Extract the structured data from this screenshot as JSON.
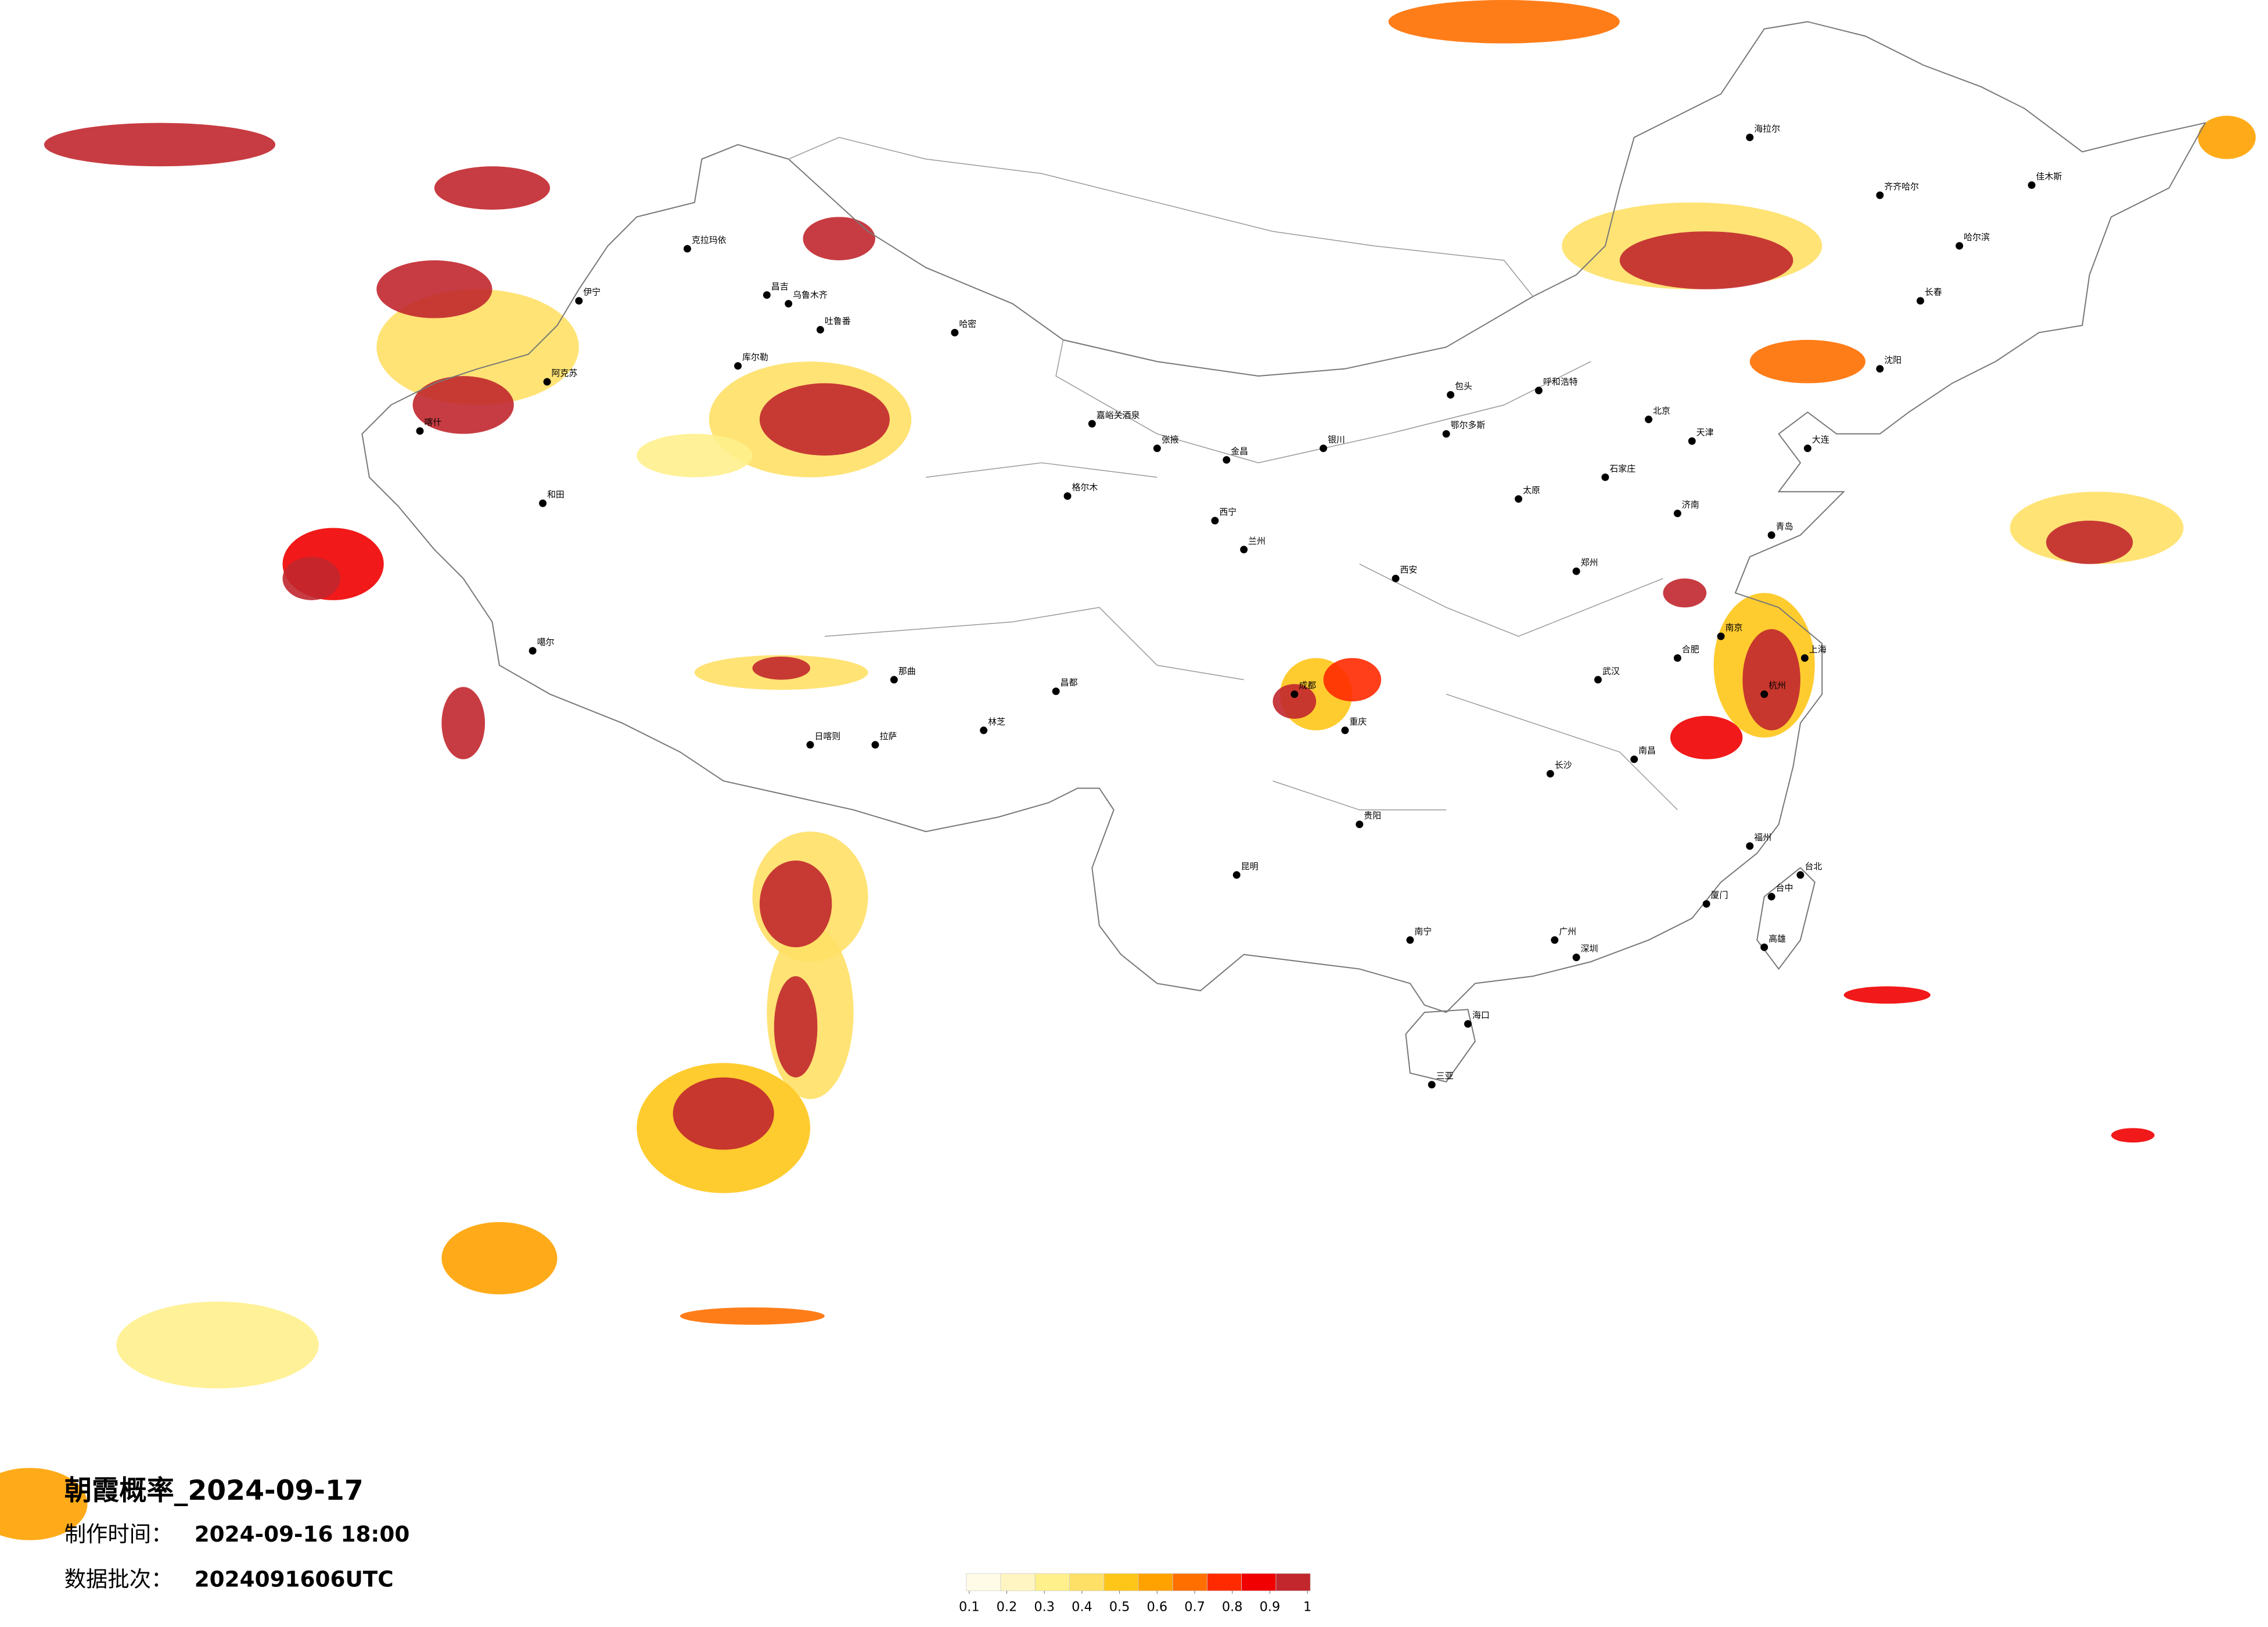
{
  "title": "朝霞概率_2024-09-17",
  "made_label": "制作时间：",
  "made_time": "2024-09-16 18:00",
  "batch_label": "数据批次：",
  "batch": "2024091606UTC",
  "legend": {
    "colors": [
      "#fffbe6",
      "#fff5c2",
      "#fff08c",
      "#ffe066",
      "#ffc61a",
      "#ffa200",
      "#ff6f00",
      "#ff2a00",
      "#f00000",
      "#c1272d"
    ],
    "ticks": [
      0.1,
      0.2,
      0.3,
      0.4,
      0.5,
      0.6,
      0.7,
      0.8,
      0.9,
      1
    ]
  },
  "cities": [
    "克拉玛依",
    "伊宁",
    "昌吉",
    "乌鲁木齐",
    "吐鲁番",
    "哈密",
    "库尔勒",
    "阿克苏",
    "喀什",
    "和田",
    "嘉峪关酒泉",
    "张掖",
    "金昌",
    "西宁",
    "兰州",
    "格尔木",
    "银川",
    "呼和浩特",
    "包头",
    "鄂尔多斯",
    "北京",
    "天津",
    "石家庄",
    "太原",
    "济南",
    "青岛",
    "郑州",
    "西安",
    "武汉",
    "南京",
    "上海",
    "杭州",
    "合肥",
    "南昌",
    "长沙",
    "福州",
    "厦门",
    "广州",
    "深圳",
    "南宁",
    "海口",
    "三亚",
    "贵阳",
    "昆明",
    "成都",
    "重庆",
    "拉萨",
    "日喀则",
    "那曲",
    "昌都",
    "林芝",
    "沈阳",
    "大连",
    "长春",
    "哈尔滨",
    "齐齐哈尔",
    "海拉尔",
    "佳木斯",
    "台北",
    "台中",
    "高雄",
    "噶尔"
  ]
}
